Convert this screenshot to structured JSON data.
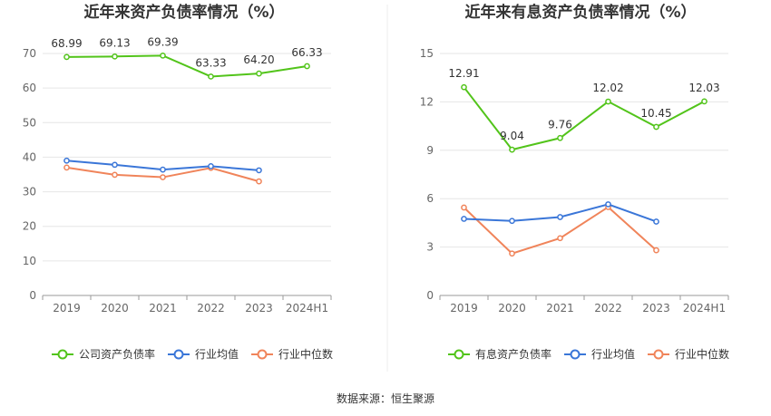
{
  "chart_data": [
    {
      "type": "line",
      "title": "近年来资产负债率情况（%）",
      "categories": [
        "2019",
        "2020",
        "2021",
        "2022",
        "2023",
        "2024H1"
      ],
      "ylim": [
        0,
        70
      ],
      "yticks": [
        "0",
        "10",
        "20",
        "30",
        "40",
        "50",
        "60",
        "70"
      ],
      "series": [
        {
          "name": "公司资产负债率",
          "color": "#52c41a",
          "values": [
            68.99,
            69.13,
            69.39,
            63.33,
            64.2,
            66.33
          ],
          "labels": [
            "68.99",
            "69.13",
            "69.39",
            "63.33",
            "64.20",
            "66.33"
          ]
        },
        {
          "name": "行业均值",
          "color": "#3a76d8",
          "values": [
            39.0,
            37.8,
            36.4,
            37.4,
            36.2,
            null
          ]
        },
        {
          "name": "行业中位数",
          "color": "#f0845a",
          "values": [
            37.0,
            34.9,
            34.2,
            36.9,
            33.0,
            null
          ]
        }
      ]
    },
    {
      "type": "line",
      "title": "近年来有息资产负债率情况（%）",
      "categories": [
        "2019",
        "2020",
        "2021",
        "2022",
        "2023",
        "2024H1"
      ],
      "ylim": [
        0,
        15
      ],
      "yticks": [
        "0",
        "3",
        "6",
        "9",
        "12",
        "15"
      ],
      "series": [
        {
          "name": "有息资产负债率",
          "color": "#52c41a",
          "values": [
            12.91,
            9.04,
            9.76,
            12.02,
            10.45,
            12.03
          ],
          "labels": [
            "12.91",
            "9.04",
            "9.76",
            "12.02",
            "10.45",
            "12.03"
          ]
        },
        {
          "name": "行业均值",
          "color": "#3a76d8",
          "values": [
            4.75,
            4.62,
            4.86,
            5.65,
            4.58,
            null
          ]
        },
        {
          "name": "行业中位数",
          "color": "#f0845a",
          "values": [
            5.45,
            2.6,
            3.55,
            5.48,
            2.8,
            null
          ]
        }
      ]
    }
  ],
  "footer": {
    "source": "数据来源：恒生聚源"
  }
}
